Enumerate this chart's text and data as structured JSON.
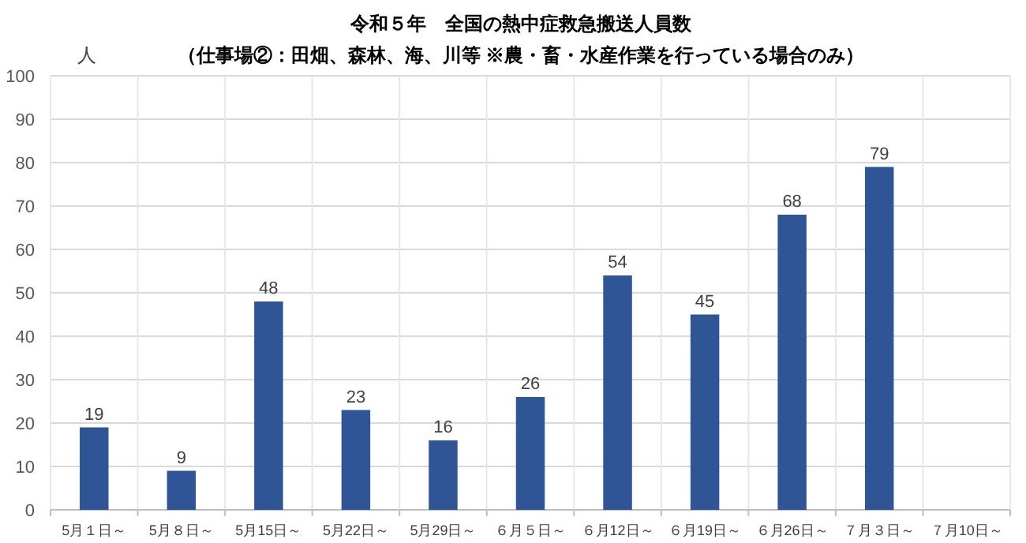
{
  "chart_data": {
    "type": "bar",
    "title": "令和５年　全国の熱中症救急搬送人員数",
    "subtitle": "（仕事場②：田畑、森林、海、川等 ※農・畜・水産作業を行っている場合のみ）",
    "ylabel": "人",
    "categories": [
      "5月１日～",
      "5月８日～",
      "5月15日～",
      "5月22日～",
      "5月29日～",
      "６月５日～",
      "６月12日～",
      "６月19日～",
      "６月26日～",
      "７月３日～",
      "７月10日～"
    ],
    "values": [
      19,
      9,
      48,
      23,
      16,
      26,
      54,
      45,
      68,
      79,
      null
    ],
    "color": "#2f5597",
    "ylim": [
      0,
      100
    ],
    "yticks": [
      0,
      10,
      20,
      30,
      40,
      50,
      60,
      70,
      80,
      90,
      100
    ],
    "grid": true,
    "data_labels": true
  }
}
